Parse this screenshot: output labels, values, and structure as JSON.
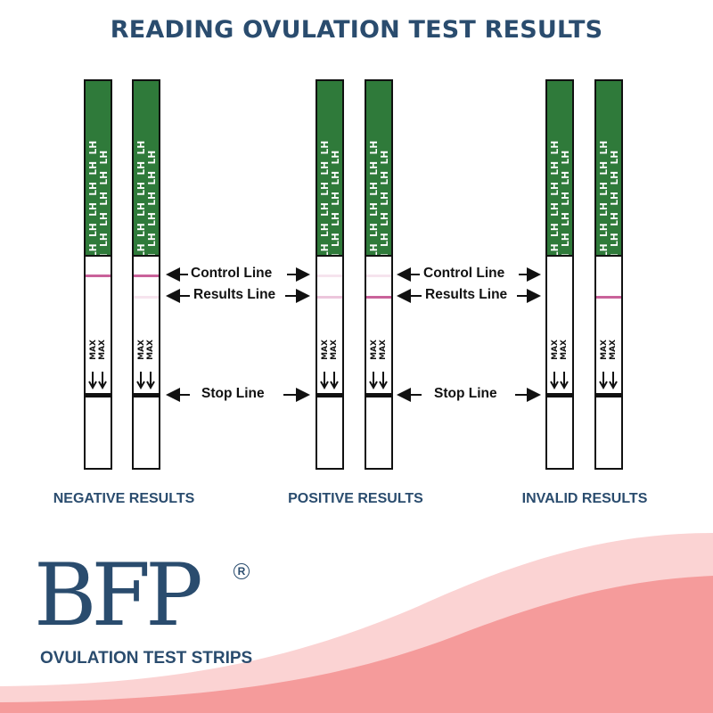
{
  "title": "READING OVULATION TEST RESULTS",
  "strip_text": {
    "lh": "LH",
    "max": "MAX"
  },
  "labels": {
    "control_line": "Control Line",
    "results_line": "Results Line",
    "stop_line": "Stop Line"
  },
  "groups": [
    {
      "name": "NEGATIVE RESULTS",
      "strips": [
        {
          "control_line": "visible",
          "results_line": "none"
        },
        {
          "control_line": "visible",
          "results_line": "faint"
        }
      ]
    },
    {
      "name": "POSITIVE RESULTS",
      "strips": [
        {
          "control_line": "faint",
          "results_line": "equal"
        },
        {
          "control_line": "faint",
          "results_line": "darker"
        }
      ]
    },
    {
      "name": "INVALID RESULTS",
      "strips": [
        {
          "control_line": "none",
          "results_line": "none"
        },
        {
          "control_line": "none",
          "results_line": "visible"
        }
      ]
    }
  ],
  "brand": {
    "logo": "BFP",
    "registered": "R",
    "tagline": "OVULATION TEST STRIPS"
  },
  "colors": {
    "navy": "#2a4c6e",
    "green": "#2f7a3a",
    "pink_line": "#c9629a",
    "pink_faint": "#ecc6dc",
    "pink_very_faint": "#f6e4ee",
    "wave_light": "#fbd3d3",
    "wave_dark": "#f59b9b"
  }
}
